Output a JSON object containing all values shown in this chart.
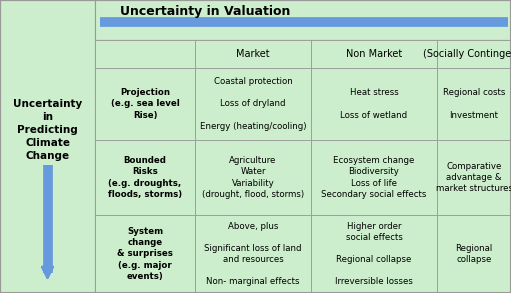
{
  "title": "Uncertainty in Valuation",
  "left_label": "Uncertainty\nin\nPredicting\nClimate\nChange",
  "bg_color": "#cceecc",
  "border_color": "#999999",
  "arrow_color": "#6699dd",
  "header_row": [
    "",
    "Market",
    "Non Market",
    "(Socially Contingent)"
  ],
  "row_labels": [
    "Projection\n(e.g. sea level\nRise)",
    "Bounded\nRisks\n(e.g. droughts,\nfloods, storms)",
    "System\nchange\n& surprises\n(e.g. major\nevents)"
  ],
  "cells": [
    [
      "Coastal protection\n\nLoss of dryland\n\nEnergy (heating/cooling)",
      "Heat stress\n\nLoss of wetland",
      "Regional costs\n\nInvestment"
    ],
    [
      "Agriculture\nWater\nVariability\n(drought, flood, storms)",
      "Ecosystem change\nBiodiversity\nLoss of life\nSecondary social effects",
      "Comparative\nadvantage &\nmarket structures"
    ],
    [
      "Above, plus\n\nSignificant loss of land\nand resources\n\nNon- marginal effects",
      "Higher order\nsocial effects\n\nRegional collapse\n\nIrreversible losses",
      "Regional\ncollapse"
    ]
  ],
  "figsize": [
    5.11,
    2.93
  ],
  "dpi": 100
}
